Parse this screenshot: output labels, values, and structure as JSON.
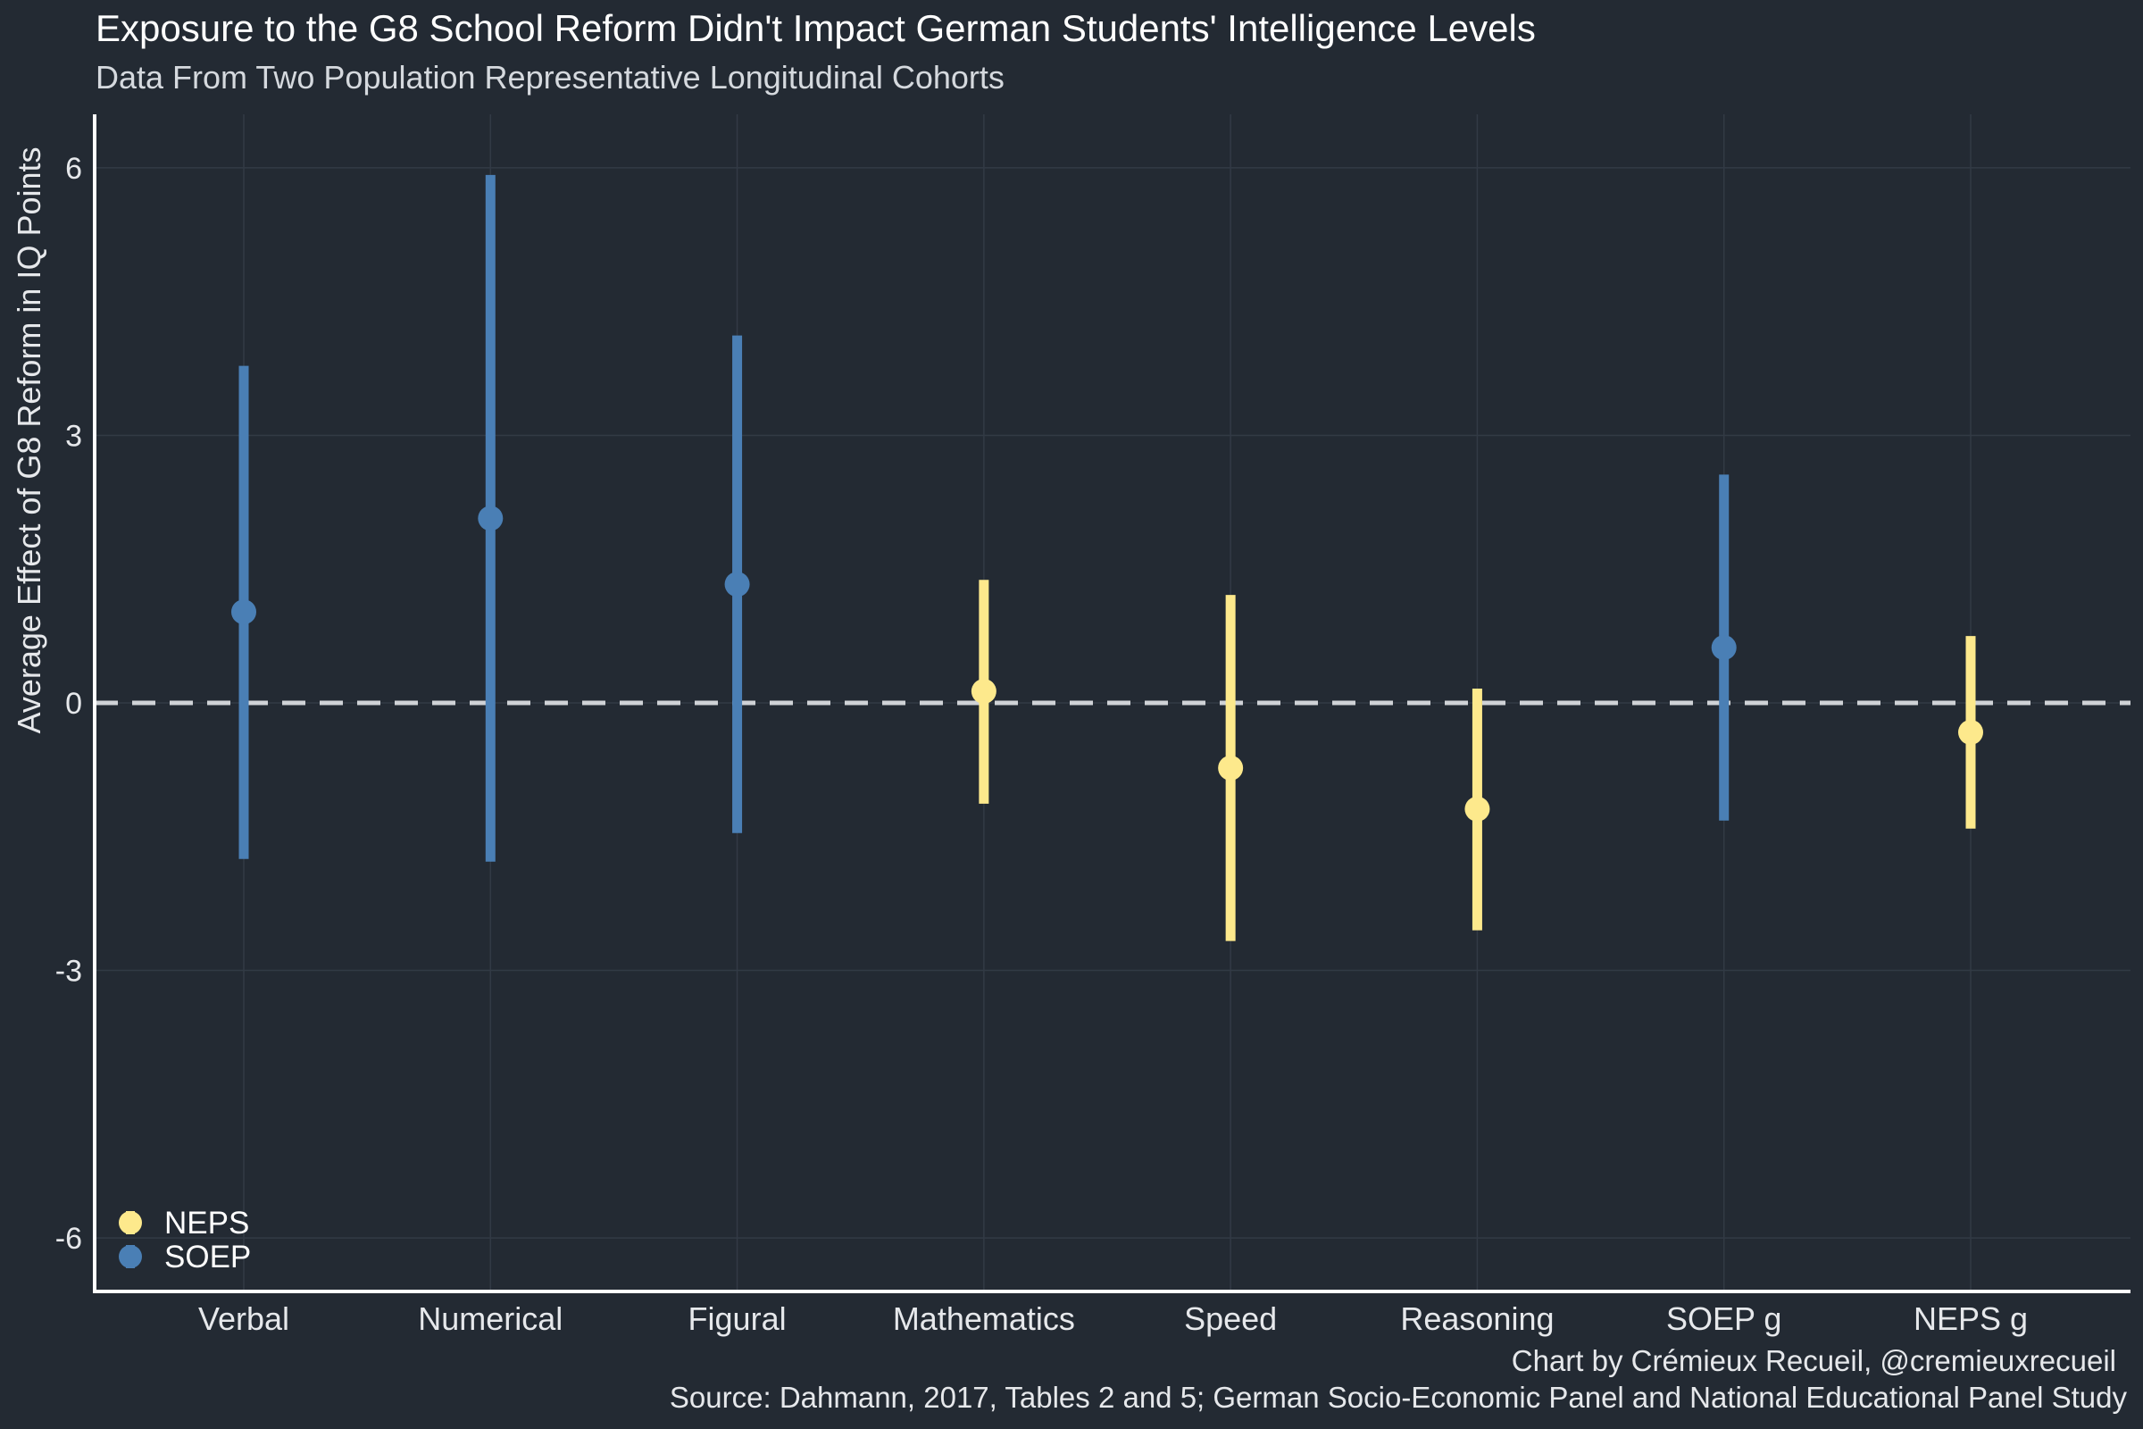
{
  "title": "Exposure to the G8 School Reform Didn't Impact German Students' Intelligence Levels",
  "subtitle": "Data From Two Population Representative Longitudinal Cohorts",
  "caption": {
    "credit": "Chart by Crémieux Recueil, @cremieuxrecueil",
    "source": "Source: Dahmann, 2017, Tables 2 and 5; German Socio-Economic Panel and National Educational Panel Study"
  },
  "colors": {
    "background": "#232a33",
    "NEPS": "#fde98c",
    "SOEP": "#4a7fb5",
    "zero_line": "#cfd2d6",
    "grid": "#323a45"
  },
  "chart_data": {
    "type": "pointrange",
    "ylabel": "Average Effect of G8 Reform in IQ Points",
    "xlabel": "",
    "ylim": [
      -6.6,
      6.6
    ],
    "yticks": [
      6,
      3,
      0,
      -3,
      -6
    ],
    "ytick_labels": [
      "6",
      "3",
      "0",
      "-3",
      "-6"
    ],
    "reference_line": 0,
    "grid": true,
    "legend_position": "bottom-left",
    "legend": [
      {
        "name": "NEPS",
        "color": "#fde98c"
      },
      {
        "name": "SOEP",
        "color": "#4a7fb5"
      }
    ],
    "categories": [
      "Verbal",
      "Numerical",
      "Figural",
      "Mathematics",
      "Speed",
      "Reasoning",
      "SOEP g",
      "NEPS g"
    ],
    "points": [
      {
        "category": "Verbal",
        "series": "SOEP",
        "estimate": 1.02,
        "lower": -1.75,
        "upper": 3.78
      },
      {
        "category": "Numerical",
        "series": "SOEP",
        "estimate": 2.07,
        "lower": -1.78,
        "upper": 5.92
      },
      {
        "category": "Figural",
        "series": "SOEP",
        "estimate": 1.33,
        "lower": -1.46,
        "upper": 4.12
      },
      {
        "category": "Mathematics",
        "series": "NEPS",
        "estimate": 0.13,
        "lower": -1.13,
        "upper": 1.38
      },
      {
        "category": "Speed",
        "series": "NEPS",
        "estimate": -0.73,
        "lower": -2.67,
        "upper": 1.21
      },
      {
        "category": "Reasoning",
        "series": "NEPS",
        "estimate": -1.19,
        "lower": -2.55,
        "upper": 0.16
      },
      {
        "category": "SOEP g",
        "series": "SOEP",
        "estimate": 0.62,
        "lower": -1.32,
        "upper": 2.56
      },
      {
        "category": "NEPS g",
        "series": "NEPS",
        "estimate": -0.33,
        "lower": -1.41,
        "upper": 0.75
      }
    ]
  }
}
